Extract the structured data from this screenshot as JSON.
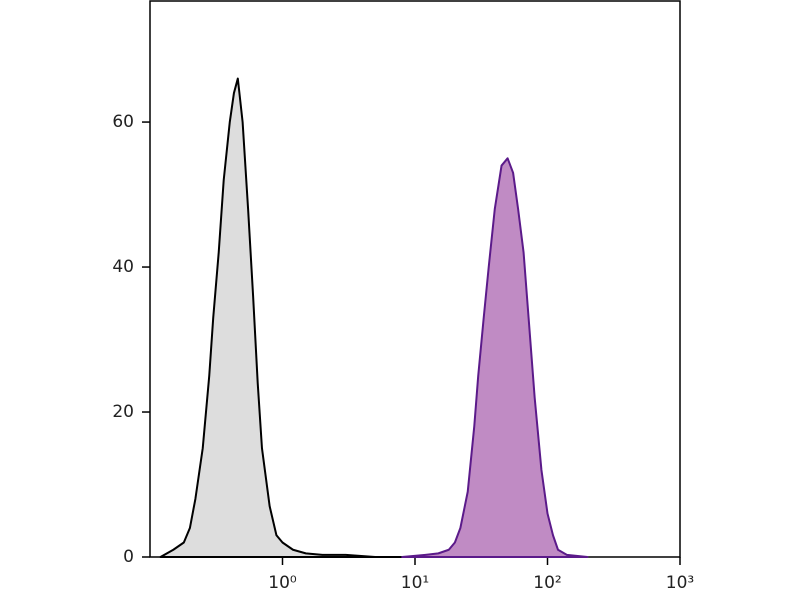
{
  "chart_data": {
    "type": "area",
    "log_x": true,
    "xlim": [
      0.1,
      1000
    ],
    "xticks": [
      {
        "value": 1,
        "label": "10⁰"
      },
      {
        "value": 10,
        "label": "10¹"
      },
      {
        "value": 100,
        "label": "10²"
      },
      {
        "value": 1000,
        "label": "10³"
      }
    ],
    "ylim": [
      0,
      76.7
    ],
    "yticks": [
      0,
      20,
      40,
      60
    ],
    "series": [
      {
        "color": "#000000",
        "fill": "#dddddd",
        "x": [
          0.12,
          0.15,
          0.18,
          0.2,
          0.22,
          0.25,
          0.28,
          0.3,
          0.33,
          0.36,
          0.4,
          0.43,
          0.46,
          0.5,
          0.55,
          0.6,
          0.65,
          0.7,
          0.8,
          0.9,
          1.0,
          1.2,
          1.5,
          2,
          3,
          5,
          10
        ],
        "values": [
          0,
          1,
          2,
          4,
          8,
          15,
          25,
          33,
          42,
          52,
          60,
          64,
          66,
          60,
          48,
          36,
          24,
          15,
          7,
          3,
          2,
          1,
          0.5,
          0.3,
          0.3,
          0,
          0
        ]
      },
      {
        "color": "#5b1a8a",
        "fill": "#c08bc4",
        "x": [
          8,
          12,
          15,
          18,
          20,
          22,
          25,
          28,
          30,
          33,
          36,
          40,
          45,
          50,
          55,
          60,
          66,
          72,
          80,
          90,
          100,
          110,
          120,
          140,
          200
        ],
        "values": [
          0,
          0.3,
          0.5,
          1,
          2,
          4,
          9,
          18,
          25,
          33,
          40,
          48,
          54,
          55,
          53,
          48,
          42,
          33,
          22,
          12,
          6,
          3,
          1,
          0.3,
          0
        ]
      }
    ]
  }
}
